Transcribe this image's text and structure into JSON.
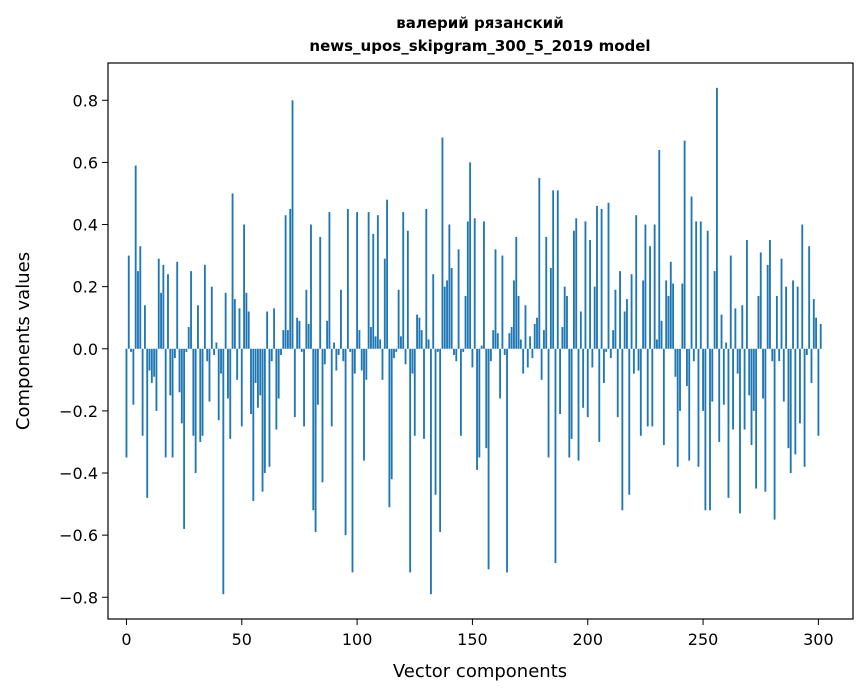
{
  "chart_data": {
    "type": "bar",
    "title_line1": "валерий рязанский",
    "title_line2": "news_upos_skipgram_300_5_2019 model",
    "xlabel": "Vector components",
    "ylabel": "Components values",
    "xlim": [
      -8,
      315
    ],
    "ylim": [
      -0.87,
      0.92
    ],
    "xticks": [
      0,
      50,
      100,
      150,
      200,
      250,
      300
    ],
    "xtick_labels": [
      "0",
      "50",
      "100",
      "150",
      "200",
      "250",
      "300"
    ],
    "yticks": [
      -0.8,
      -0.6,
      -0.4,
      -0.2,
      0.0,
      0.2,
      0.4,
      0.6,
      0.8
    ],
    "ytick_labels": [
      "−0.8",
      "−0.6",
      "−0.4",
      "−0.2",
      "0.0",
      "0.2",
      "0.4",
      "0.6",
      "0.8"
    ],
    "bar_color": "#1f77b4",
    "values": [
      -0.35,
      0.3,
      -0.01,
      -0.18,
      0.59,
      0.25,
      0.33,
      -0.28,
      0.14,
      -0.48,
      -0.07,
      -0.11,
      -0.09,
      -0.2,
      0.29,
      0.18,
      0.27,
      -0.35,
      0.24,
      -0.15,
      -0.35,
      -0.03,
      0.28,
      -0.14,
      -0.24,
      -0.58,
      -0.01,
      0.07,
      0.25,
      -0.28,
      -0.4,
      0.14,
      -0.3,
      -0.28,
      0.27,
      -0.04,
      -0.17,
      0.2,
      -0.02,
      0.02,
      -0.23,
      -0.08,
      -0.79,
      0.18,
      -0.16,
      -0.29,
      0.5,
      0.16,
      -0.1,
      0.13,
      -0.25,
      0.4,
      0.18,
      0.12,
      -0.21,
      -0.49,
      -0.11,
      -0.19,
      -0.15,
      -0.46,
      -0.4,
      0.12,
      -0.38,
      -0.04,
      0.13,
      -0.26,
      -0.16,
      -0.02,
      0.06,
      0.43,
      0.06,
      0.45,
      0.8,
      -0.22,
      0.1,
      0.09,
      -0.01,
      -0.25,
      0.19,
      0.08,
      0.4,
      -0.52,
      -0.59,
      -0.18,
      0.36,
      -0.43,
      -0.05,
      0.09,
      0.44,
      -0.25,
      0.02,
      -0.07,
      -0.02,
      0.19,
      -0.04,
      -0.6,
      0.45,
      -0.01,
      -0.72,
      -0.08,
      0.44,
      0.06,
      -0.07,
      -0.36,
      -0.1,
      0.44,
      0.07,
      0.37,
      0.04,
      0.43,
      0.03,
      -0.1,
      0.29,
      0.48,
      -0.51,
      -0.42,
      -0.03,
      -0.01,
      0.19,
      0.04,
      0.44,
      -0.05,
      0.38,
      -0.72,
      -0.08,
      -0.28,
      0.11,
      0.1,
      0.06,
      -0.29,
      0.45,
      0.03,
      -0.79,
      0.24,
      -0.47,
      -0.01,
      -0.59,
      0.68,
      0.2,
      0.22,
      0.4,
      0.26,
      -0.02,
      -0.04,
      0.32,
      -0.28,
      -0.01,
      0.17,
      0.41,
      0.6,
      -0.06,
      0.42,
      -0.39,
      -0.35,
      0.01,
      0.41,
      -0.32,
      -0.71,
      -0.04,
      0.06,
      0.32,
      0.05,
      -0.16,
      0.3,
      -0.02,
      -0.72,
      0.05,
      0.07,
      0.22,
      0.36,
      0.17,
      0.03,
      -0.08,
      0.14,
      -0.06,
      0.04,
      -0.03,
      0.08,
      0.1,
      0.55,
      -0.1,
      0.06,
      0.36,
      -0.35,
      0.26,
      0.51,
      -0.69,
      0.51,
      -0.21,
      0.07,
      0.2,
      0.17,
      -0.35,
      -0.29,
      0.38,
      0.42,
      -0.36,
      0.12,
      -0.19,
      0.41,
      -0.22,
      0.35,
      -0.06,
      0.2,
      0.46,
      -0.3,
      0.45,
      -0.11,
      -0.01,
      0.47,
      -0.03,
      0.06,
      0.19,
      -0.22,
      0.25,
      -0.52,
      0.12,
      0.16,
      -0.47,
      0.24,
      -0.08,
      0.43,
      -0.07,
      -0.28,
      0.22,
      0.4,
      -0.25,
      0.33,
      -0.25,
      0.4,
      0.03,
      0.64,
      0.09,
      -0.31,
      0.22,
      0.17,
      0.28,
      0.21,
      -0.09,
      -0.38,
      -0.2,
      0.21,
      0.67,
      -0.12,
      -0.36,
      0.49,
      -0.04,
      0.41,
      -0.38,
      0.41,
      -0.2,
      -0.52,
      0.38,
      -0.52,
      -0.17,
      0.25,
      0.84,
      -0.3,
      0.11,
      -0.18,
      0.02,
      -0.48,
      0.3,
      -0.26,
      0.13,
      -0.08,
      -0.53,
      0.14,
      -0.26,
      0.35,
      -0.15,
      -0.31,
      -0.2,
      -0.45,
      0.17,
      0.31,
      -0.16,
      -0.46,
      0.27,
      0.35,
      -0.04,
      -0.55,
      0.17,
      -0.04,
      0.29,
      -0.17,
      0.2,
      -0.32,
      -0.4,
      0.22,
      -0.34,
      0.2,
      -0.24,
      0.4,
      -0.38,
      -0.02,
      0.33,
      -0.11,
      0.16,
      0.1,
      -0.28,
      0.08
    ]
  }
}
